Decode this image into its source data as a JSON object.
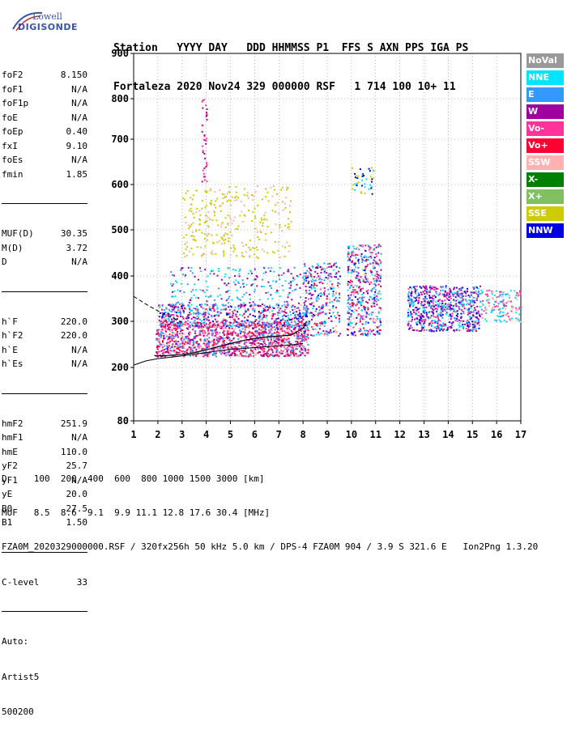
{
  "logo": {
    "line1": "Lowell",
    "line2": "DIGISONDE"
  },
  "header": {
    "row1": "Station   YYYY DAY   DDD HHMMSS P1  FFS S AXN PPS IGA PS",
    "row2": "Fortaleza 2020 Nov24 329 000000 RSF   1 714 100 10+ 11"
  },
  "params": {
    "group1": [
      {
        "label": "foF2",
        "value": "8.150"
      },
      {
        "label": "foF1",
        "value": "N/A"
      },
      {
        "label": "foF1p",
        "value": "N/A"
      },
      {
        "label": "foE",
        "value": "N/A"
      },
      {
        "label": "foEp",
        "value": "0.40"
      },
      {
        "label": "fxI",
        "value": "9.10"
      },
      {
        "label": "foEs",
        "value": "N/A"
      },
      {
        "label": "fmin",
        "value": "1.85"
      }
    ],
    "group2": [
      {
        "label": "MUF(D)",
        "value": "30.35"
      },
      {
        "label": "M(D)",
        "value": "3.72"
      },
      {
        "label": "D",
        "value": "N/A"
      }
    ],
    "group3": [
      {
        "label": "h`F",
        "value": "220.0"
      },
      {
        "label": "h`F2",
        "value": "220.0"
      },
      {
        "label": "h`E",
        "value": "N/A"
      },
      {
        "label": "h`Es",
        "value": "N/A"
      }
    ],
    "group4": [
      {
        "label": "hmF2",
        "value": "251.9"
      },
      {
        "label": "hmF1",
        "value": "N/A"
      },
      {
        "label": "hmE",
        "value": "110.0"
      },
      {
        "label": "yF2",
        "value": "25.7"
      },
      {
        "label": "yF1",
        "value": "N/A"
      },
      {
        "label": "yE",
        "value": "20.0"
      },
      {
        "label": "B0",
        "value": "27.5"
      },
      {
        "label": "B1",
        "value": "1.50"
      }
    ],
    "group5": [
      {
        "label": "C-level",
        "value": "33"
      }
    ],
    "auto": [
      "Auto:",
      "Artist5",
      "500200"
    ]
  },
  "legend": [
    {
      "label": "NoVal",
      "bg": "#999999",
      "fg": "#ffffff"
    },
    {
      "label": "NNE",
      "bg": "#00e5ff",
      "fg": "#ffffff"
    },
    {
      "label": "E",
      "bg": "#3399ff",
      "fg": "#ffffff"
    },
    {
      "label": "W",
      "bg": "#a000a0",
      "fg": "#ffffff"
    },
    {
      "label": "Vo-",
      "bg": "#ff3399",
      "fg": "#ffffff"
    },
    {
      "label": "Vo+",
      "bg": "#ff0033",
      "fg": "#ffffff"
    },
    {
      "label": "SSW",
      "bg": "#ffb0b0",
      "fg": "#ffffff"
    },
    {
      "label": "X-",
      "bg": "#008000",
      "fg": "#ffffff"
    },
    {
      "label": "X+",
      "bg": "#80c060",
      "fg": "#ffffff"
    },
    {
      "label": "SSE",
      "bg": "#cccc00",
      "fg": "#ffffff"
    },
    {
      "label": "NNW",
      "bg": "#0000e0",
      "fg": "#ffffff"
    }
  ],
  "bottom": {
    "d_row": "D     100  200  400  600  800 1000 1500 3000 [km]",
    "muf_row": "MUF   8.5  8.6  9.1  9.9 11.1 12.8 17.6 30.4 [MHz]",
    "footer": "FZA0M_2020329000000.RSF / 320fx256h 50 kHz 5.0 km / DPS-4 FZA0M 904 / 3.9 S 321.6 E   Ion2Png 1.3.20"
  },
  "chart_data": {
    "type": "scatter",
    "title": "",
    "xlabel": "",
    "ylabel": "",
    "xlim": [
      1,
      17
    ],
    "ylim": [
      80,
      900
    ],
    "x_ticks": [
      1,
      2,
      3,
      4,
      5,
      6,
      7,
      8,
      9,
      10,
      11,
      12,
      13,
      14,
      15,
      16,
      17
    ],
    "y_ticks": [
      80,
      200,
      300,
      400,
      500,
      600,
      700,
      800,
      900
    ],
    "grid": true,
    "legend_position": "right",
    "profile_curve": {
      "x": [
        1.0,
        1.5,
        2.0,
        2.5,
        3.0,
        3.5,
        4.0,
        4.5,
        5.0,
        5.5,
        6.0,
        6.5,
        7.0,
        7.5,
        8.0
      ],
      "y": [
        205,
        214,
        219,
        222,
        225,
        229,
        232,
        236,
        239,
        241,
        243,
        245,
        247,
        249,
        252
      ]
    },
    "virtual_height_trace": {
      "x": [
        1.85,
        2.0,
        2.5,
        3.0,
        3.5,
        4.0,
        4.5,
        5.0,
        5.5,
        6.0,
        6.5,
        7.0,
        7.5,
        8.0,
        8.15
      ],
      "y": [
        226,
        225,
        226,
        228,
        232,
        238,
        245,
        252,
        258,
        263,
        266,
        268,
        270,
        285,
        300
      ]
    },
    "dashed_trace": {
      "x": [
        1.0,
        1.5,
        2.0,
        2.5,
        3.0
      ],
      "y": [
        355,
        338,
        323,
        310,
        298
      ]
    }
  }
}
